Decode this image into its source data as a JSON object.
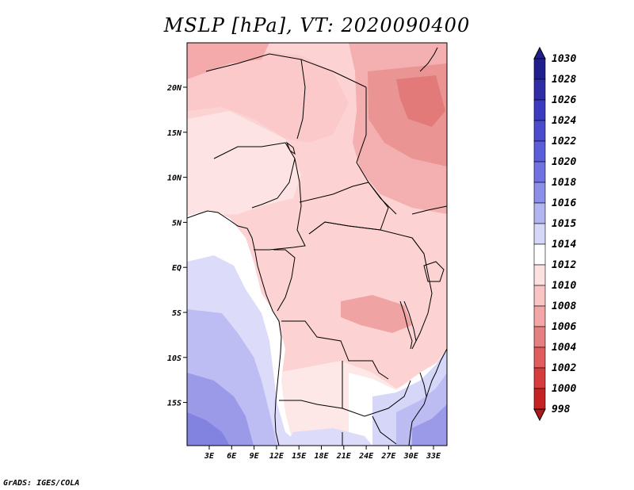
{
  "title": "MSLP [hPa], VT: 2020090400",
  "footer": "GrADS: IGES/COLA",
  "map": {
    "x_ticks": [
      "3E",
      "6E",
      "9E",
      "12E",
      "15E",
      "18E",
      "21E",
      "24E",
      "27E",
      "30E",
      "33E"
    ],
    "y_ticks": [
      "20N",
      "15N",
      "10N",
      "5N",
      "EQ",
      "5S",
      "10S",
      "15S"
    ]
  },
  "colorbar": {
    "levels": [
      "1030",
      "1028",
      "1026",
      "1024",
      "1022",
      "1020",
      "1018",
      "1016",
      "1015",
      "1014",
      "1012",
      "1010",
      "1008",
      "1006",
      "1004",
      "1002",
      "1000",
      "998"
    ],
    "colors": [
      "#211e8e",
      "#2e2da6",
      "#3a3bbf",
      "#4a4ccc",
      "#5a5ed8",
      "#6f72e0",
      "#8c8fe8",
      "#b3b5f1",
      "#d6d7f8",
      "#ffffff",
      "#fde0e0",
      "#f8c4c4",
      "#f2a6a6",
      "#e58080",
      "#df5d5d",
      "#d63c3c",
      "#c52323",
      "#b11818"
    ]
  }
}
